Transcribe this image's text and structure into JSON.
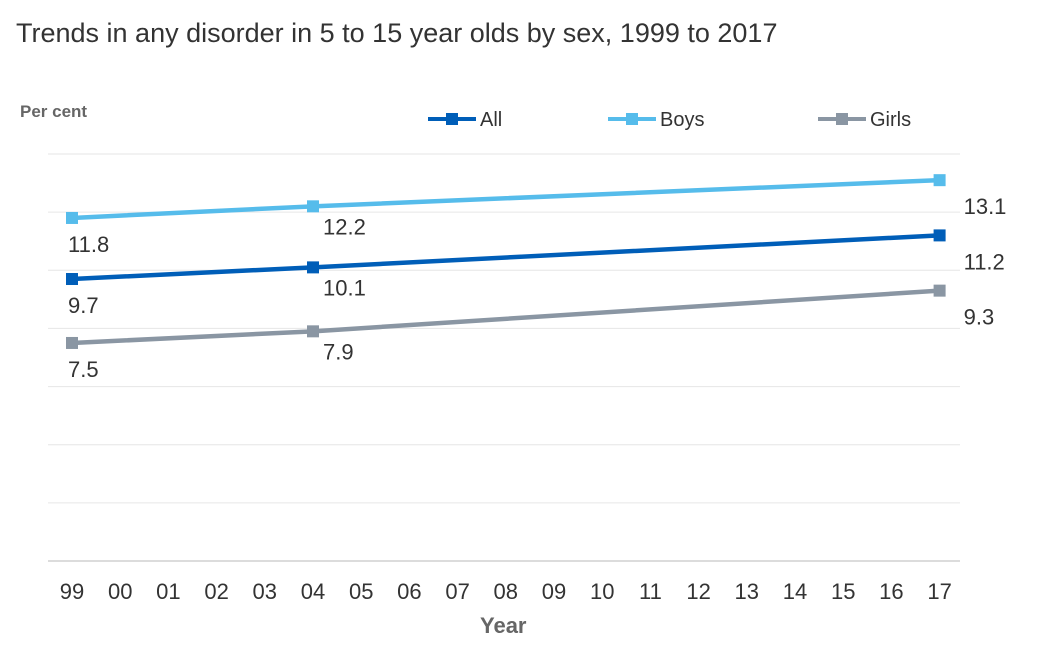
{
  "chart_data": {
    "type": "line",
    "title": "Trends in any disorder in 5 to 15 year olds by sex, 1999 to 2017",
    "ylabel": "Per cent",
    "xlabel": "Year",
    "x": [
      "99",
      "00",
      "01",
      "02",
      "03",
      "04",
      "05",
      "06",
      "07",
      "08",
      "09",
      "10",
      "11",
      "12",
      "13",
      "14",
      "15",
      "16",
      "17"
    ],
    "ylim": [
      0,
      14
    ],
    "grid": "horizontal",
    "legend_position": "top",
    "series": [
      {
        "name": "All",
        "color": "#005EB8",
        "points": [
          {
            "x": "99",
            "y": 9.7
          },
          {
            "x": "04",
            "y": 10.1
          },
          {
            "x": "17",
            "y": 11.2
          }
        ],
        "labels": [
          "9.7",
          "10.1",
          "11.2"
        ]
      },
      {
        "name": "Boys",
        "color": "#56BCEB",
        "points": [
          {
            "x": "99",
            "y": 11.8
          },
          {
            "x": "04",
            "y": 12.2
          },
          {
            "x": "17",
            "y": 13.1
          }
        ],
        "labels": [
          "11.8",
          "12.2",
          "13.1"
        ]
      },
      {
        "name": "Girls",
        "color": "#8A96A3",
        "points": [
          {
            "x": "99",
            "y": 7.5
          },
          {
            "x": "04",
            "y": 7.9
          },
          {
            "x": "17",
            "y": 9.3
          }
        ],
        "labels": [
          "7.5",
          "7.9",
          "9.3"
        ]
      }
    ]
  }
}
